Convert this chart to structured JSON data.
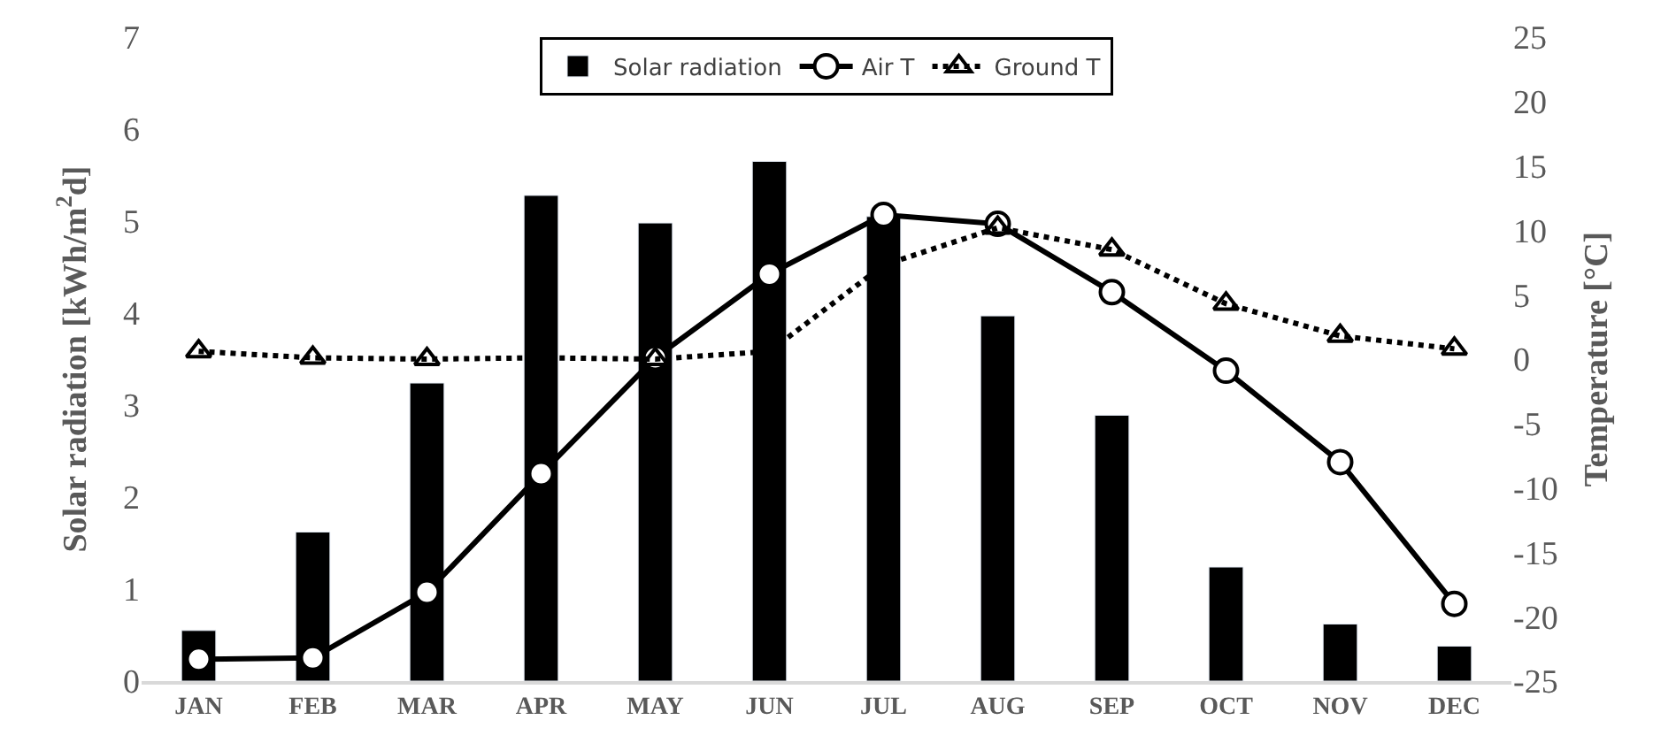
{
  "chart_data": {
    "type": "bar",
    "categories": [
      "JAN",
      "FEB",
      "MAR",
      "APR",
      "MAY",
      "JUN",
      "JUL",
      "AUG",
      "SEP",
      "OCT",
      "NOV",
      "DEC"
    ],
    "series": [
      {
        "name": "Solar radiation",
        "color": "#000000",
        "values": [
          0.55,
          1.62,
          3.24,
          5.28,
          4.98,
          5.65,
          5.05,
          3.97,
          2.89,
          1.24,
          0.62,
          0.38
        ]
      },
      {
        "name": "Air T",
        "type": "line",
        "axis": "y2",
        "color": "#000000",
        "marker": "circle",
        "line_style": "solid",
        "values": [
          -23.3,
          -23.2,
          -18.1,
          -8.9,
          0.1,
          6.6,
          11.2,
          10.5,
          5.2,
          -0.9,
          -8.0,
          -19.0
        ]
      },
      {
        "name": "Ground T",
        "type": "line",
        "axis": "y2",
        "color": "#000000",
        "marker": "triangle",
        "line_style": "dotted",
        "values": [
          0.6,
          0.1,
          0.0,
          0.1,
          0.0,
          0.6,
          7.3,
          10.2,
          8.5,
          4.3,
          1.8,
          0.8
        ]
      }
    ],
    "ylabel": "Solar radiation [kWh/m$^{2}$d]",
    "y2label": "Temperature [°C]",
    "ylim": [
      0,
      7
    ],
    "yticks": [
      0,
      1,
      2,
      3,
      4,
      5,
      6,
      7
    ],
    "y2lim": [
      -25,
      25
    ],
    "y2ticks": [
      -25,
      -20,
      -15,
      -10,
      -5,
      0,
      5,
      10,
      15,
      20,
      25
    ],
    "legend": "top"
  }
}
